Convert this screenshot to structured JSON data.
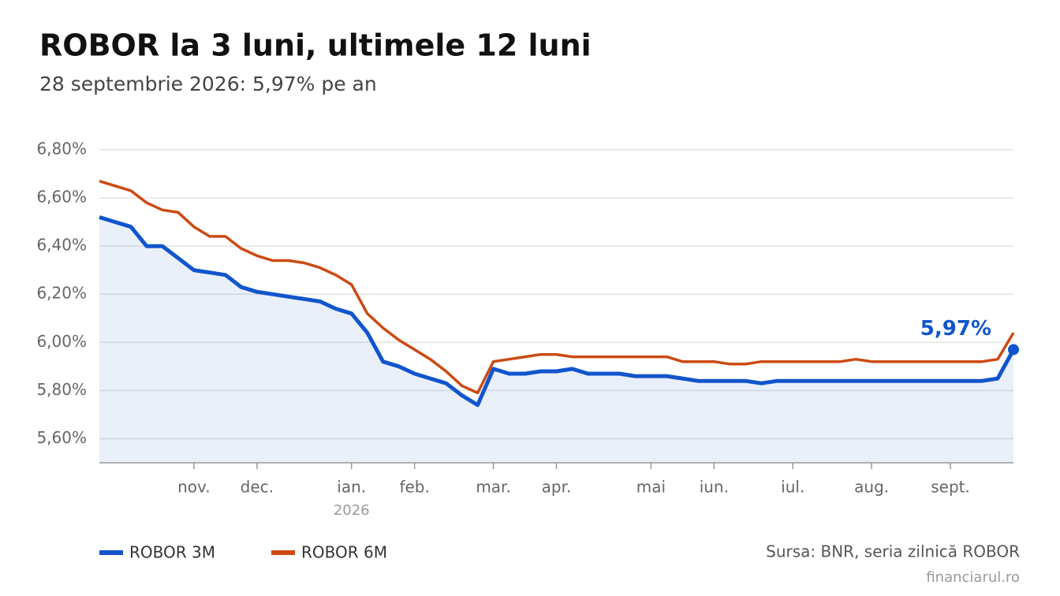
{
  "chart_data": {
    "type": "line",
    "title": "ROBOR la 3 luni, ultimele 12 luni",
    "subtitle": "28 septembrie 2026: 5,97% pe an",
    "categories": [
      null,
      null,
      null,
      null,
      null,
      null,
      "nov.",
      null,
      null,
      null,
      "dec.",
      null,
      null,
      null,
      null,
      null,
      "ian.",
      null,
      null,
      null,
      "feb.",
      null,
      null,
      null,
      null,
      "mar.",
      null,
      null,
      null,
      "apr.",
      null,
      null,
      null,
      null,
      null,
      "mai",
      null,
      null,
      null,
      "iun.",
      null,
      null,
      null,
      null,
      "iul.",
      null,
      null,
      null,
      null,
      "aug.",
      null,
      null,
      null,
      null,
      "sept.",
      null,
      null,
      null,
      null
    ],
    "year_label": "2026",
    "series": [
      {
        "name": "ROBOR 3M",
        "color": "#1155cc",
        "area": true,
        "values": [
          6.52,
          6.5,
          6.48,
          6.4,
          6.4,
          6.35,
          6.3,
          6.29,
          6.28,
          6.23,
          6.21,
          6.2,
          6.19,
          6.18,
          6.17,
          6.14,
          6.12,
          6.04,
          5.92,
          5.9,
          5.87,
          5.85,
          5.83,
          5.78,
          5.74,
          5.89,
          5.87,
          5.87,
          5.88,
          5.88,
          5.89,
          5.87,
          5.87,
          5.87,
          5.86,
          5.86,
          5.86,
          5.85,
          5.84,
          5.84,
          5.84,
          5.84,
          5.83,
          5.84,
          5.84,
          5.84,
          5.84,
          5.84,
          5.84,
          5.84,
          5.84,
          5.84,
          5.84,
          5.84,
          5.84,
          5.84,
          5.84,
          5.85,
          5.97
        ]
      },
      {
        "name": "ROBOR 6M",
        "color": "#cc4a14",
        "values": [
          6.67,
          6.65,
          6.63,
          6.58,
          6.55,
          6.54,
          6.48,
          6.44,
          6.44,
          6.39,
          6.36,
          6.34,
          6.34,
          6.33,
          6.31,
          6.28,
          6.24,
          6.12,
          6.06,
          6.01,
          5.97,
          5.93,
          5.88,
          5.82,
          5.79,
          5.92,
          5.93,
          5.94,
          5.95,
          5.95,
          5.94,
          5.94,
          5.94,
          5.94,
          5.94,
          5.94,
          5.94,
          5.92,
          5.92,
          5.92,
          5.91,
          5.91,
          5.92,
          5.92,
          5.92,
          5.92,
          5.92,
          5.92,
          5.93,
          5.92,
          5.92,
          5.92,
          5.92,
          5.92,
          5.92,
          5.92,
          5.92,
          5.93,
          6.04
        ]
      }
    ],
    "annotation": "5,97%",
    "ylim": [
      5.5,
      6.8
    ],
    "yticks": [
      {
        "value": 5.6,
        "label": "5,60%"
      },
      {
        "value": 5.8,
        "label": "5,80%"
      },
      {
        "value": 6.0,
        "label": "6,00%"
      },
      {
        "value": 6.2,
        "label": "6,20%"
      },
      {
        "value": 6.4,
        "label": "6,40%"
      },
      {
        "value": 6.6,
        "label": "6,60%"
      },
      {
        "value": 6.8,
        "label": "6,80%"
      }
    ],
    "grid": true,
    "legend": "bottom-left",
    "source": "Sursa: BNR, seria zilnică ROBOR",
    "credit": "financiarul.ro"
  }
}
